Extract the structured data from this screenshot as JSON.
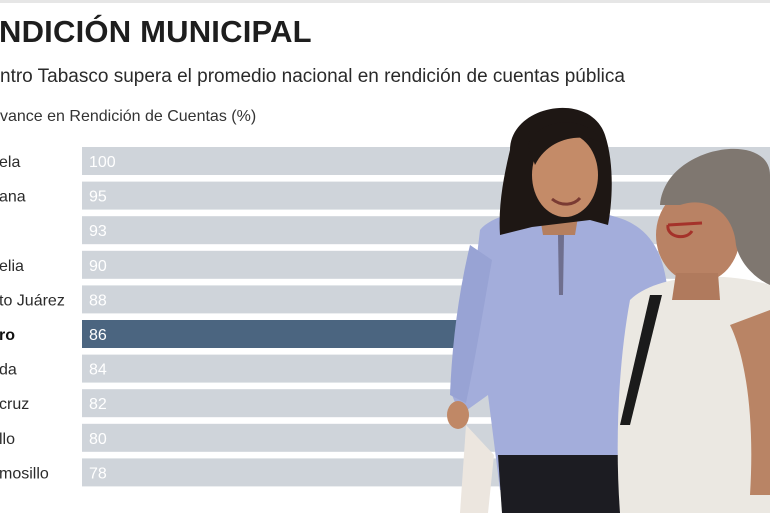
{
  "chart_data": {
    "type": "bar",
    "orientation": "horizontal",
    "title": "NDICIÓN MUNICIPAL",
    "subtitle": "ntro Tabasco supera el promedio nacional en rendición de cuentas pública",
    "xlabel": "vance en Rendición de Cuentas (%)",
    "ylabel": "",
    "categories": [
      "ela",
      "ana",
      "",
      "elia",
      "to Juárez",
      "ro",
      "da",
      "cruz",
      "llo",
      "mosillo"
    ],
    "values": [
      100,
      95,
      93,
      90,
      88,
      86,
      84,
      82,
      80,
      78
    ],
    "highlight": "ro",
    "xlim": [
      0,
      100
    ],
    "grid": false,
    "legend": "none"
  },
  "colors": {
    "bar": "#cfd4da",
    "highlight_bar": "#4b6580",
    "value_text": "#ffffff"
  },
  "photo": {
    "description_icon": "woman-greeting-photo"
  }
}
